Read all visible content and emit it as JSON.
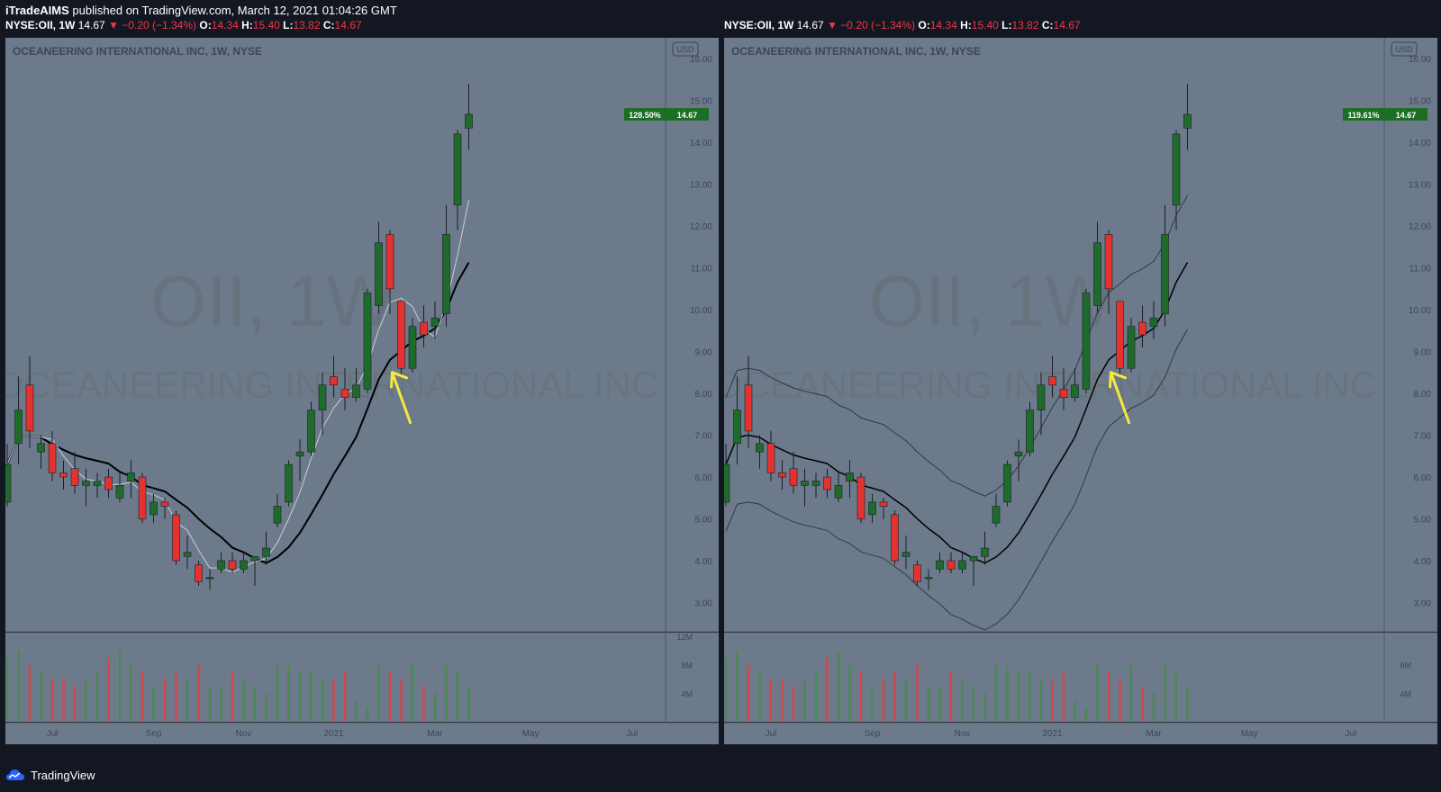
{
  "header": {
    "author": "iTradeAIMS",
    "published_text": "published on TradingView.com, March 12, 2021 01:04:26 GMT"
  },
  "quote": {
    "symbol": "NYSE:OII, 1W",
    "last": "14.67",
    "arrow": "▼",
    "change": "−0.20 (−1.34%)",
    "o_label": "O:",
    "o": "14.34",
    "h_label": "H:",
    "h": "15.40",
    "l_label": "L:",
    "l": "13.82",
    "c_label": "C:",
    "c": "14.67"
  },
  "footer": {
    "brand": "TradingView"
  },
  "colors": {
    "pane_bg": "#6c7a8c",
    "up": "#1f6b2b",
    "down": "#e5322f",
    "vol_up": "#4a8a52",
    "vol_down": "#d2484a",
    "badge": "#1b6e23",
    "arrow": "#f4ea3c"
  },
  "chart_data": [
    {
      "type": "candlestick",
      "title": "OCEANEERING INTERNATIONAL INC, 1W, NYSE",
      "watermark_symbol": "OII, 1W",
      "watermark_name": "OCEANEERING INTERNATIONAL INC",
      "currency": "USD",
      "price_ticks": [
        "16.00",
        "15.00",
        "14.00",
        "13.00",
        "12.00",
        "11.00",
        "10.00",
        "9.00",
        "8.00",
        "7.00",
        "6.00",
        "5.00",
        "4.00",
        "3.00"
      ],
      "volume_ticks": [
        "12M",
        "8M",
        "4M"
      ],
      "time_ticks": [
        "Jul",
        "Sep",
        "Nov",
        "2021",
        "Mar",
        "May",
        "Jul"
      ],
      "last_badge": {
        "percent": "128.50%",
        "price": "14.67"
      },
      "ylim": [
        2.3,
        16.5
      ],
      "moving_averages": [
        "fast",
        "slow"
      ],
      "candles": [
        {
          "o": 5.4,
          "h": 6.8,
          "l": 5.3,
          "c": 6.3
        },
        {
          "o": 6.8,
          "h": 8.4,
          "l": 6.3,
          "c": 7.6
        },
        {
          "o": 8.2,
          "h": 8.9,
          "l": 6.7,
          "c": 7.1
        },
        {
          "o": 6.6,
          "h": 7.0,
          "l": 6.2,
          "c": 6.8
        },
        {
          "o": 6.8,
          "h": 7.1,
          "l": 5.9,
          "c": 6.1
        },
        {
          "o": 6.1,
          "h": 6.4,
          "l": 5.7,
          "c": 6.0
        },
        {
          "o": 6.2,
          "h": 6.6,
          "l": 5.6,
          "c": 5.8
        },
        {
          "o": 5.8,
          "h": 6.2,
          "l": 5.3,
          "c": 5.9
        },
        {
          "o": 5.8,
          "h": 6.1,
          "l": 5.5,
          "c": 5.9
        },
        {
          "o": 6.0,
          "h": 6.2,
          "l": 5.5,
          "c": 5.7
        },
        {
          "o": 5.5,
          "h": 6.1,
          "l": 5.4,
          "c": 5.8
        },
        {
          "o": 5.9,
          "h": 6.4,
          "l": 5.5,
          "c": 6.1
        },
        {
          "o": 6.0,
          "h": 6.1,
          "l": 4.9,
          "c": 5.0
        },
        {
          "o": 5.1,
          "h": 5.6,
          "l": 4.9,
          "c": 5.4
        },
        {
          "o": 5.4,
          "h": 5.5,
          "l": 5.0,
          "c": 5.3
        },
        {
          "o": 5.1,
          "h": 5.2,
          "l": 3.9,
          "c": 4.0
        },
        {
          "o": 4.1,
          "h": 4.6,
          "l": 3.8,
          "c": 4.2
        },
        {
          "o": 3.9,
          "h": 4.0,
          "l": 3.4,
          "c": 3.5
        },
        {
          "o": 3.6,
          "h": 3.8,
          "l": 3.3,
          "c": 3.6
        },
        {
          "o": 3.8,
          "h": 4.2,
          "l": 3.7,
          "c": 4.0
        },
        {
          "o": 4.0,
          "h": 4.2,
          "l": 3.7,
          "c": 3.8
        },
        {
          "o": 3.8,
          "h": 4.2,
          "l": 3.7,
          "c": 4.0
        },
        {
          "o": 4.0,
          "h": 4.1,
          "l": 3.4,
          "c": 4.1
        },
        {
          "o": 4.1,
          "h": 4.7,
          "l": 3.9,
          "c": 4.3
        },
        {
          "o": 4.9,
          "h": 5.6,
          "l": 4.8,
          "c": 5.3
        },
        {
          "o": 5.4,
          "h": 6.4,
          "l": 5.3,
          "c": 6.3
        },
        {
          "o": 6.5,
          "h": 6.9,
          "l": 5.9,
          "c": 6.6
        },
        {
          "o": 6.6,
          "h": 7.8,
          "l": 6.5,
          "c": 7.6
        },
        {
          "o": 7.6,
          "h": 8.5,
          "l": 7.0,
          "c": 8.2
        },
        {
          "o": 8.4,
          "h": 8.9,
          "l": 7.9,
          "c": 8.2
        },
        {
          "o": 8.1,
          "h": 8.6,
          "l": 7.6,
          "c": 7.9
        },
        {
          "o": 7.9,
          "h": 8.6,
          "l": 7.8,
          "c": 8.2
        },
        {
          "o": 8.1,
          "h": 10.5,
          "l": 8.0,
          "c": 10.4
        },
        {
          "o": 10.1,
          "h": 12.1,
          "l": 9.9,
          "c": 11.6
        },
        {
          "o": 11.8,
          "h": 11.9,
          "l": 9.9,
          "c": 10.5
        },
        {
          "o": 10.2,
          "h": 10.2,
          "l": 8.4,
          "c": 8.6
        },
        {
          "o": 8.6,
          "h": 9.8,
          "l": 8.5,
          "c": 9.6
        },
        {
          "o": 9.7,
          "h": 10.1,
          "l": 9.1,
          "c": 9.4
        },
        {
          "o": 9.6,
          "h": 10.2,
          "l": 9.3,
          "c": 9.8
        },
        {
          "o": 9.9,
          "h": 12.5,
          "l": 9.6,
          "c": 11.8
        },
        {
          "o": 12.5,
          "h": 14.3,
          "l": 11.9,
          "c": 14.2
        },
        {
          "o": 14.34,
          "h": 15.4,
          "l": 13.82,
          "c": 14.67
        }
      ],
      "volume_millions": [
        9,
        10,
        8,
        7,
        6,
        6,
        5,
        6,
        7,
        9,
        10,
        8,
        7,
        5,
        6,
        7,
        6,
        8,
        5,
        5,
        7,
        6,
        5,
        4,
        8,
        8,
        7,
        7,
        6,
        6,
        7,
        3,
        2,
        8,
        7,
        6,
        8,
        5,
        4,
        8,
        7,
        5
      ]
    },
    {
      "type": "candlestick",
      "title": "OCEANEERING INTERNATIONAL INC, 1W, NYSE",
      "watermark_symbol": "OII, 1W",
      "watermark_name": "OCEANEERING INTERNATIONAL INC",
      "currency": "USD",
      "price_ticks": [
        "16.00",
        "15.00",
        "14.00",
        "13.00",
        "12.00",
        "11.00",
        "10.00",
        "9.00",
        "8.00",
        "7.00",
        "6.00",
        "5.00",
        "4.00",
        "3.00"
      ],
      "volume_ticks": [
        "8M",
        "4M"
      ],
      "time_ticks": [
        "Jul",
        "Sep",
        "Nov",
        "2021",
        "Mar",
        "May",
        "Jul"
      ],
      "last_badge": {
        "percent": "119.61%",
        "price": "14.67"
      },
      "ylim": [
        2.3,
        16.5
      ],
      "moving_averages": [
        "middle",
        "upper-band",
        "lower-band"
      ]
    }
  ]
}
